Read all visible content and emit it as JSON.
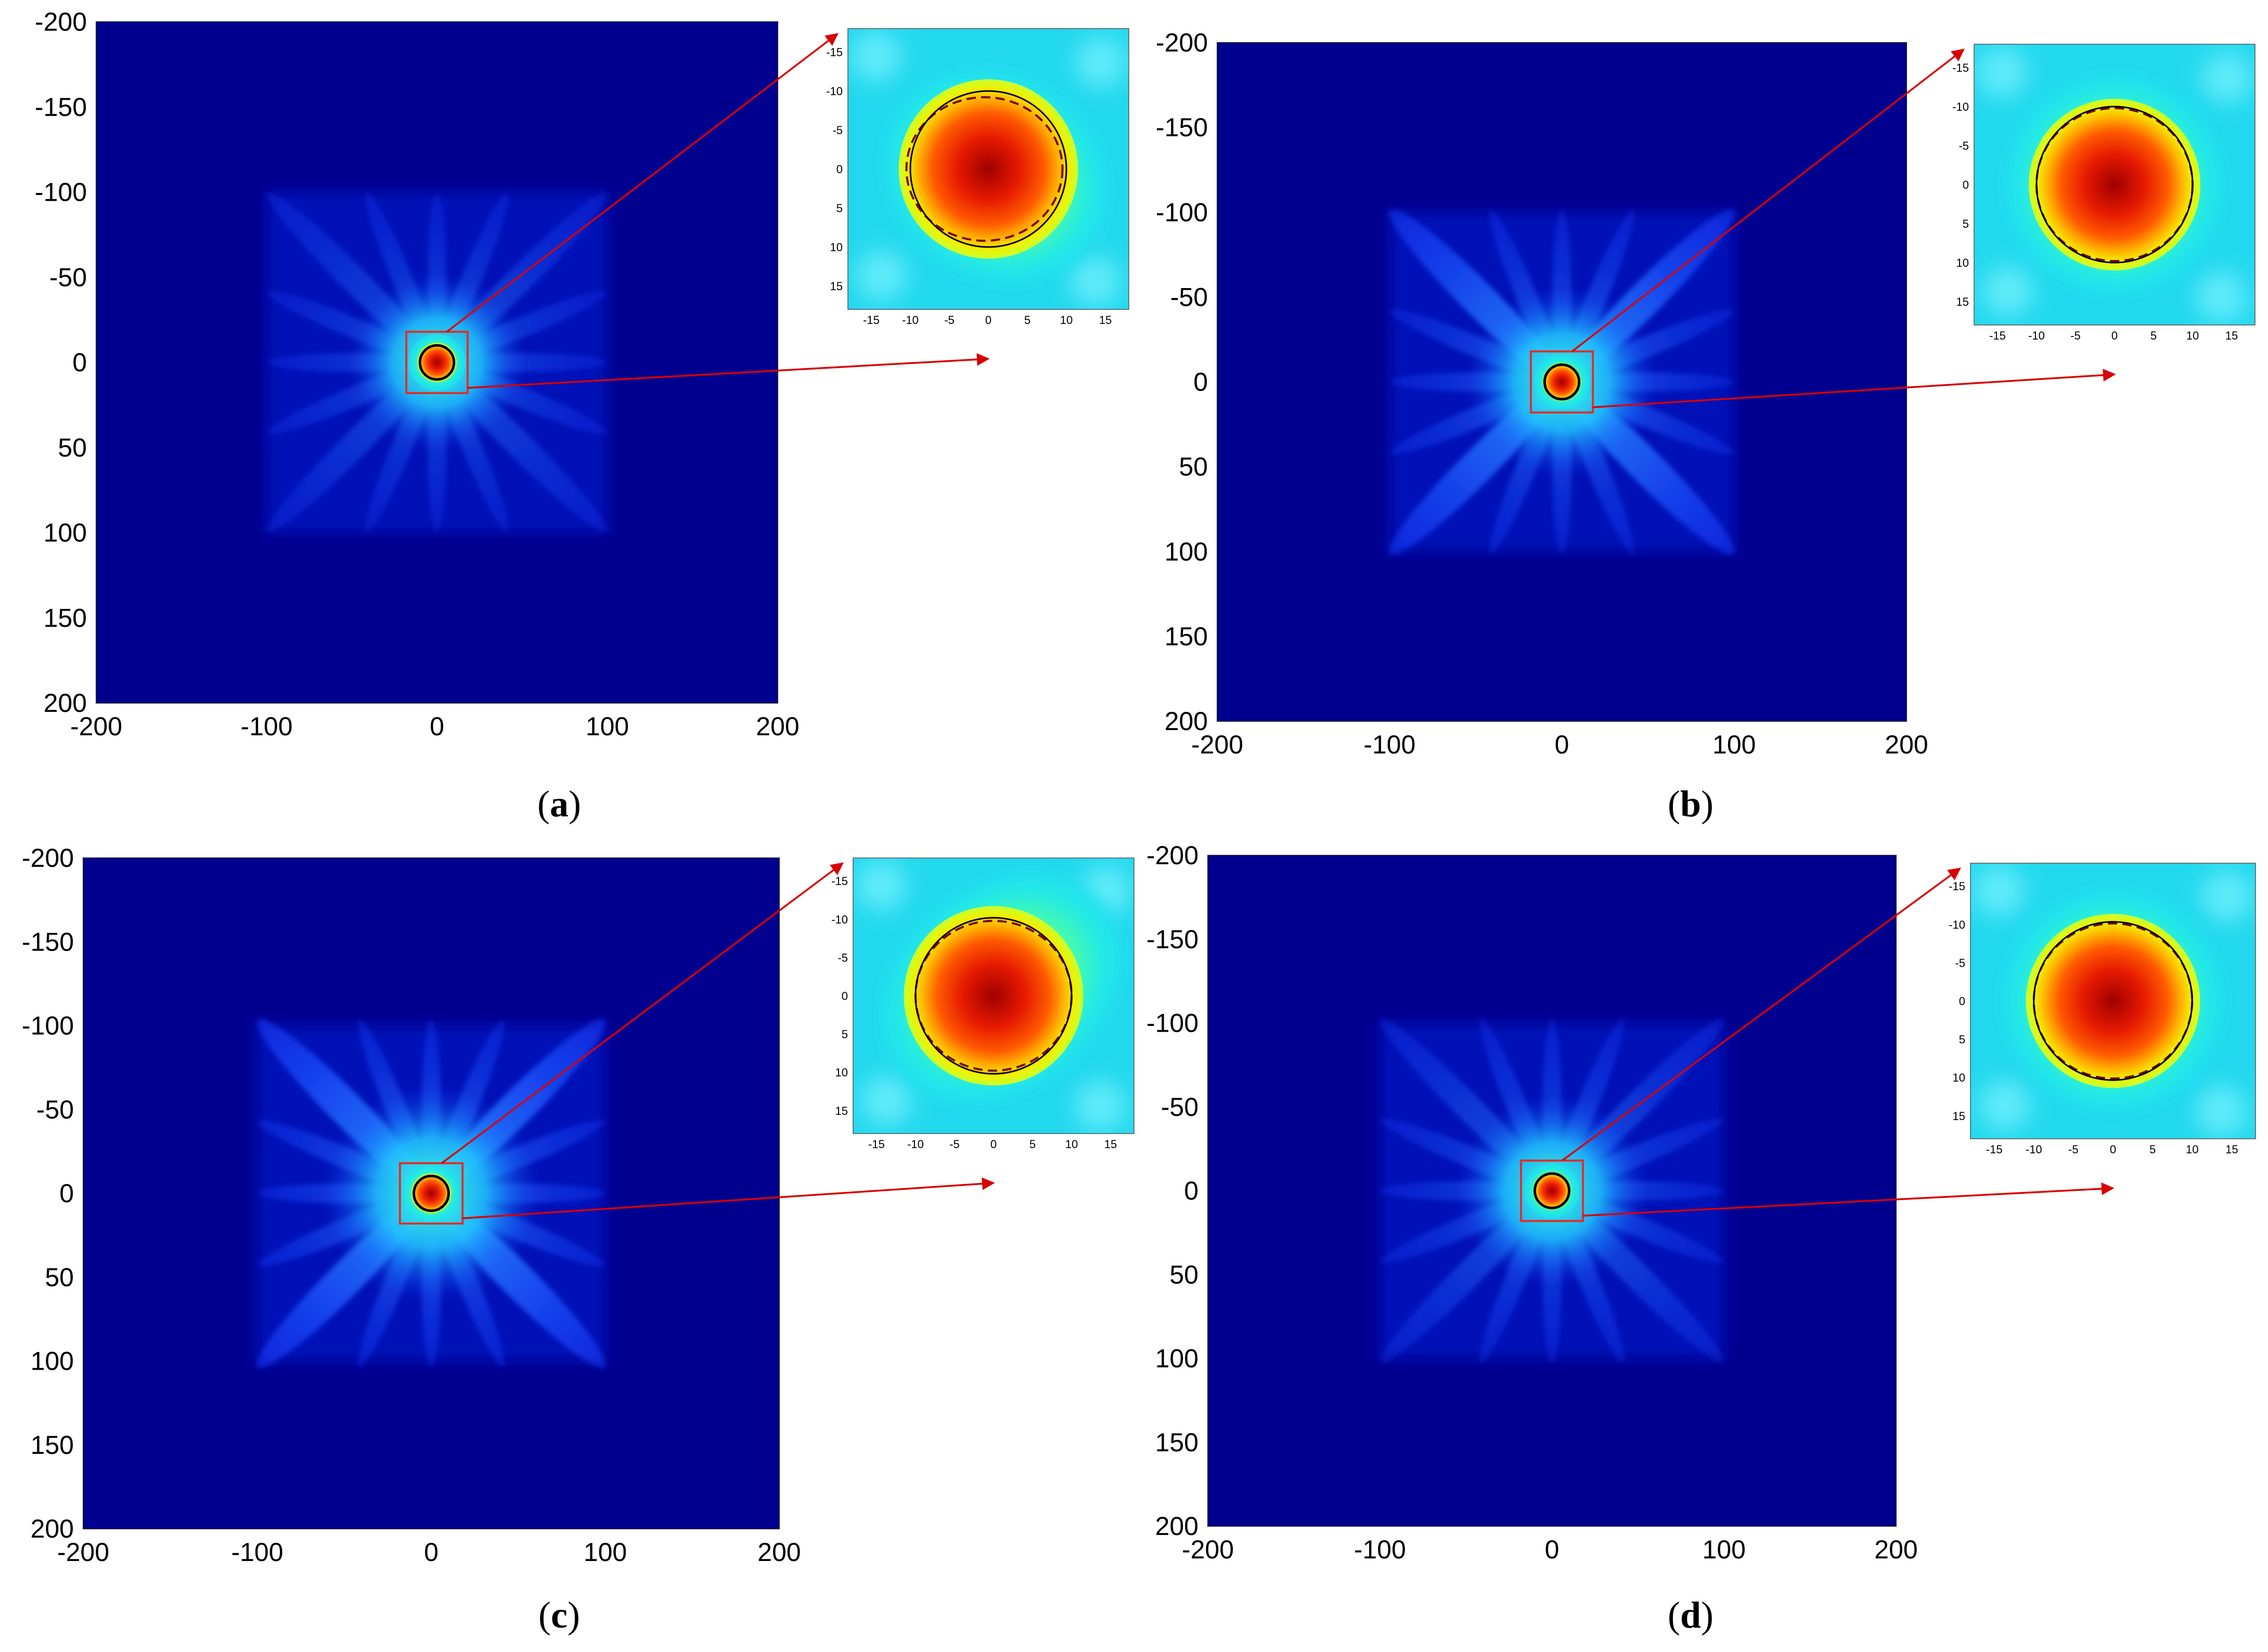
{
  "figure": {
    "caption_open": "(",
    "caption_close": ")"
  },
  "colors": {
    "background": "#00008f",
    "zoom_box": "#e0302a",
    "arrow": "#d80000",
    "true_circle": "#000000",
    "estimated_circle": "#7a0000"
  },
  "chart_data": [
    {
      "type": "heatmap",
      "panel": "a",
      "xlim": [
        -200,
        200
      ],
      "ylim": [
        -200,
        200
      ],
      "x_ticks": [
        "-200",
        "-100",
        "0",
        "100",
        "200"
      ],
      "y_ticks": [
        "-200",
        "-150",
        "-100",
        "-50",
        "0",
        "50",
        "100",
        "150",
        "200"
      ],
      "pattern": {
        "arms": 16,
        "arm_reach": 100,
        "rotation_deg": 0,
        "arm_intensity": 0.45,
        "core_spread": 0.5,
        "support": [
          -100,
          100
        ]
      },
      "inset": {
        "xlim": [
          -18,
          18
        ],
        "ylim": [
          -18,
          18
        ],
        "ticks": [
          "-15",
          "-10",
          "-5",
          "0",
          "5",
          "10",
          "15"
        ],
        "true_circle": {
          "cx": 0,
          "cy": 0,
          "r": 10
        },
        "estimated_circle": {
          "cx": -0.5,
          "cy": 0,
          "rx": 10,
          "ry": 9.2
        },
        "hot_spot": {
          "cx": 0,
          "cy": 0,
          "r": 11.5
        },
        "warm_lobe": {
          "cx": 1,
          "cy": 1,
          "rx": 15,
          "ry": 13,
          "angle": 35
        }
      }
    },
    {
      "type": "heatmap",
      "panel": "b",
      "xlim": [
        -200,
        200
      ],
      "ylim": [
        -200,
        200
      ],
      "x_ticks": [
        "-200",
        "-100",
        "0",
        "100",
        "200"
      ],
      "y_ticks": [
        "-200",
        "-150",
        "-100",
        "-50",
        "0",
        "50",
        "100",
        "150",
        "200"
      ],
      "pattern": {
        "arms": 16,
        "arm_reach": 100,
        "rotation_deg": 0,
        "arm_intensity": 0.55,
        "dominant_diagonal": true,
        "core_spread": 0.6,
        "support": [
          -100,
          100
        ]
      },
      "inset": {
        "xlim": [
          -18,
          18
        ],
        "ylim": [
          -18,
          18
        ],
        "ticks": [
          "-15",
          "-10",
          "-5",
          "0",
          "5",
          "10",
          "15"
        ],
        "true_circle": {
          "cx": 0,
          "cy": 0,
          "r": 10
        },
        "estimated_circle": {
          "cx": 0,
          "cy": 0,
          "rx": 10,
          "ry": 9.8
        },
        "hot_spot": {
          "cx": 0,
          "cy": 0,
          "r": 11
        },
        "warm_lobe": {
          "cx": 0,
          "cy": 0,
          "rx": 14,
          "ry": 14,
          "angle": 0
        }
      }
    },
    {
      "type": "heatmap",
      "panel": "c",
      "xlim": [
        -200,
        200
      ],
      "ylim": [
        -200,
        200
      ],
      "x_ticks": [
        "-200",
        "-100",
        "0",
        "100",
        "200"
      ],
      "y_ticks": [
        "-200",
        "-150",
        "-100",
        "-50",
        "0",
        "50",
        "100",
        "150",
        "200"
      ],
      "pattern": {
        "arms": 16,
        "arm_reach": 100,
        "rotation_deg": 0,
        "arm_intensity": 0.6,
        "dominant_diagonal": true,
        "core_spread": 0.8,
        "support": [
          -100,
          100
        ]
      },
      "inset": {
        "xlim": [
          -18,
          18
        ],
        "ylim": [
          -18,
          18
        ],
        "ticks": [
          "-15",
          "-10",
          "-5",
          "0",
          "5",
          "10",
          "15"
        ],
        "true_circle": {
          "cx": 0,
          "cy": 0,
          "r": 10
        },
        "estimated_circle": {
          "cx": 0,
          "cy": 0,
          "rx": 10,
          "ry": 9.6
        },
        "hot_spot": {
          "cx": 0,
          "cy": 0,
          "r": 11.5
        },
        "warm_lobe": {
          "cx": 1,
          "cy": -1,
          "rx": 17,
          "ry": 13,
          "angle": -40
        }
      }
    },
    {
      "type": "heatmap",
      "panel": "d",
      "xlim": [
        -200,
        200
      ],
      "ylim": [
        -200,
        200
      ],
      "x_ticks": [
        "-200",
        "-100",
        "0",
        "100",
        "200"
      ],
      "y_ticks": [
        "-200",
        "-150",
        "-100",
        "-50",
        "0",
        "50",
        "100",
        "150",
        "200"
      ],
      "pattern": {
        "arms": 16,
        "arm_reach": 100,
        "rotation_deg": 0,
        "arm_intensity": 0.5,
        "core_spread": 0.6,
        "support": [
          -100,
          100
        ]
      },
      "inset": {
        "xlim": [
          -18,
          18
        ],
        "ylim": [
          -18,
          18
        ],
        "ticks": [
          "-15",
          "-10",
          "-5",
          "0",
          "5",
          "10",
          "15"
        ],
        "true_circle": {
          "cx": 0,
          "cy": 0,
          "r": 10
        },
        "estimated_circle": {
          "cx": 0,
          "cy": 0,
          "rx": 10,
          "ry": 9.8
        },
        "hot_spot": {
          "cx": 0,
          "cy": 0,
          "r": 11
        },
        "warm_lobe": {
          "cx": 0,
          "cy": 0,
          "rx": 14,
          "ry": 14,
          "angle": 0
        }
      }
    }
  ]
}
